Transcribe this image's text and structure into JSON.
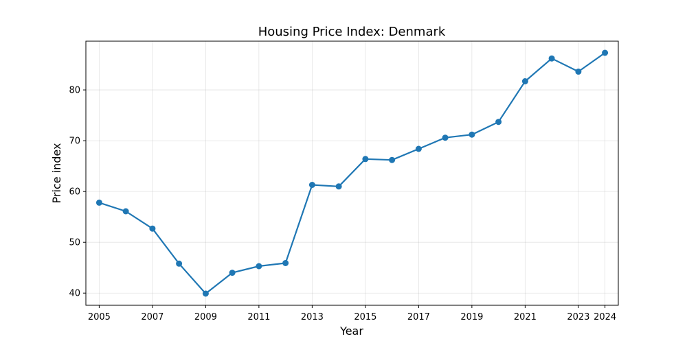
{
  "chart_data": {
    "type": "line",
    "title": "Housing Price Index: Denmark",
    "xlabel": "Year",
    "ylabel": "Price index",
    "x_ticks": [
      "2005",
      "2007",
      "2009",
      "2011",
      "2013",
      "2015",
      "2017",
      "2019",
      "2021",
      "2023",
      "2024"
    ],
    "y_ticks": [
      "40",
      "50",
      "60",
      "70",
      "80"
    ],
    "xlim": [
      2004.5,
      2024.5
    ],
    "ylim": [
      37.6,
      89.6
    ],
    "grid": true,
    "series": [
      {
        "color": "#1f77b4",
        "x": [
          2005,
          2006,
          2007,
          2008,
          2009,
          2010,
          2011,
          2012,
          2013,
          2014,
          2015,
          2016,
          2017,
          2018,
          2019,
          2020,
          2021,
          2022,
          2023,
          2024
        ],
        "y": [
          57.8,
          56.1,
          52.7,
          45.8,
          39.9,
          44.0,
          45.3,
          45.9,
          61.3,
          61.0,
          66.4,
          66.2,
          68.4,
          70.6,
          71.2,
          73.7,
          81.7,
          86.2,
          83.6,
          87.3
        ]
      }
    ]
  }
}
